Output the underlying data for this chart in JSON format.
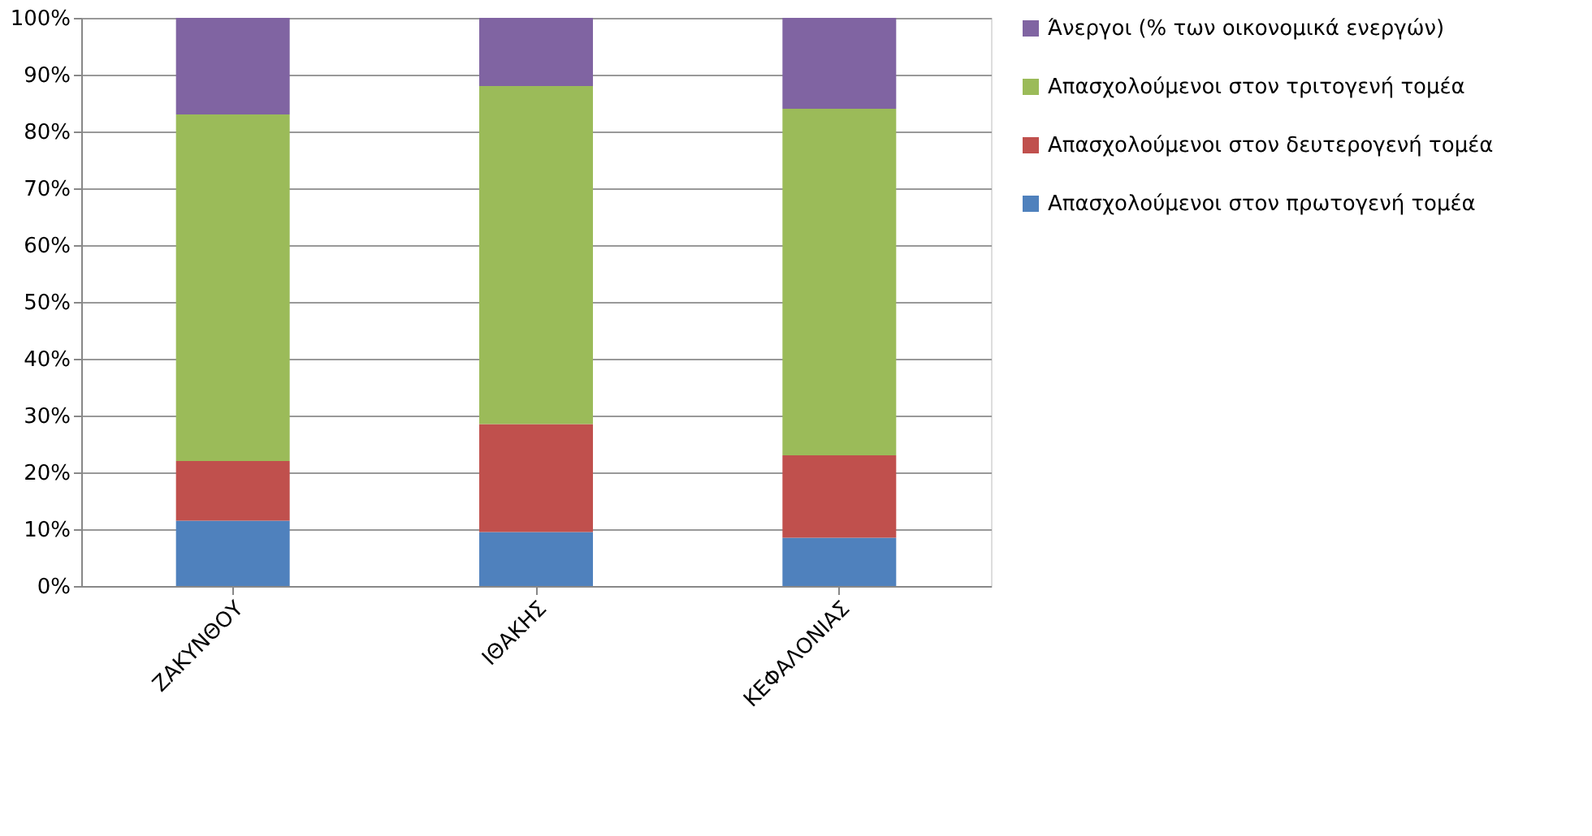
{
  "chart_data": {
    "type": "bar",
    "stacked": true,
    "categories": [
      "ΖΑΚΥΝΘΟΥ",
      "ΙΘΑΚΗΣ",
      "ΚΕΦΑΛΟΝΙΑΣ"
    ],
    "series": [
      {
        "name": "Απασχολούμενοι στον πρωτογενή τομέα",
        "color": "#4f81bd",
        "values": [
          11.5,
          9.5,
          8.5
        ]
      },
      {
        "name": "Απασχολούμενοι στον δευτερογενή τομέα",
        "color": "#c0504d",
        "values": [
          10.5,
          19,
          14.5
        ]
      },
      {
        "name": "Απασχολούμενοι στον τριτογενή τομέα",
        "color": "#9bbb59",
        "values": [
          61,
          59.5,
          61
        ]
      },
      {
        "name": "Άνεργοι (% των οικονομικά ενεργών)",
        "color": "#8064a2",
        "values": [
          17,
          12,
          16
        ]
      }
    ],
    "ylim": [
      0,
      100
    ],
    "yticks": [
      {
        "value": 0,
        "label": "0%"
      },
      {
        "value": 10,
        "label": "10%"
      },
      {
        "value": 20,
        "label": "20%"
      },
      {
        "value": 30,
        "label": "30%"
      },
      {
        "value": 40,
        "label": "40%"
      },
      {
        "value": 50,
        "label": "50%"
      },
      {
        "value": 60,
        "label": "60%"
      },
      {
        "value": 70,
        "label": "70%"
      },
      {
        "value": 80,
        "label": "80%"
      },
      {
        "value": 90,
        "label": "90%"
      },
      {
        "value": 100,
        "label": "100%"
      }
    ],
    "grid": "y",
    "legend": "right"
  }
}
